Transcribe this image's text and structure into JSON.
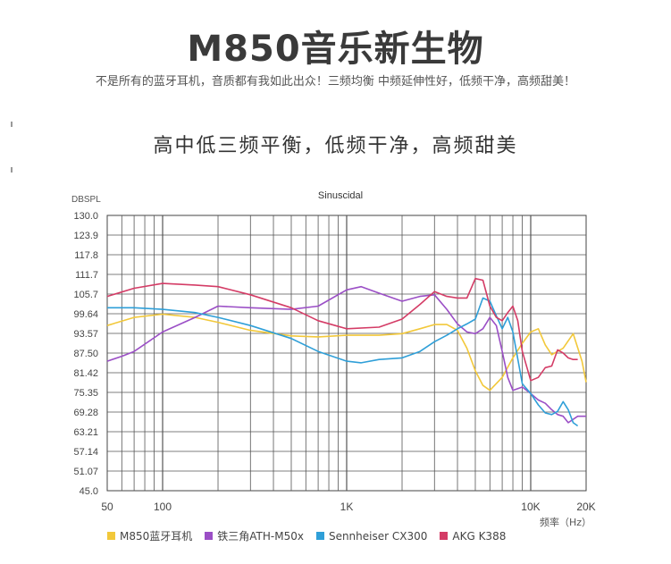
{
  "header": {
    "title": "M850音乐新生物",
    "tagline": "不是所有的蓝牙耳机，音质都有我如此出众！三频均衡 中频延伸性好，低频干净，高频甜美！",
    "subtitle": "高中低三频平衡，低频干净，高频甜美"
  },
  "chart_data": {
    "type": "line",
    "title": "Sinuscidal",
    "ylabel": "DBSPL",
    "xlabel": "频率（Hz）",
    "x_scale": "log",
    "xlim": [
      50,
      20000
    ],
    "ylim": [
      45.0,
      130.0
    ],
    "y_ticks": [
      "130.0",
      "123.9",
      "117.8",
      "111.7",
      "105.7",
      "99.64",
      "93.57",
      "87.50",
      "81.42",
      "75.35",
      "69.28",
      "63.21",
      "57.14",
      "51.07",
      "45.0"
    ],
    "x_ticks": [
      {
        "value": 50,
        "label": "50"
      },
      {
        "value": 100,
        "label": "100"
      },
      {
        "value": 1000,
        "label": "1K"
      },
      {
        "value": 10000,
        "label": "10K"
      },
      {
        "value": 20000,
        "label": "20K"
      }
    ],
    "grid": true,
    "legend_position": "bottom",
    "series": [
      {
        "name": "M850蓝牙耳机",
        "color": "#f2c83a",
        "x": [
          50,
          70,
          100,
          150,
          200,
          300,
          500,
          700,
          1000,
          1500,
          2000,
          2500,
          3000,
          3500,
          4000,
          4500,
          5000,
          5500,
          6000,
          7000,
          8000,
          9000,
          10000,
          11000,
          12000,
          13000,
          15000,
          17000,
          19000,
          20000
        ],
        "y": [
          96,
          98.5,
          99.5,
          98.5,
          97,
          94.5,
          92.8,
          92.5,
          93,
          93,
          93.5,
          95,
          96.3,
          96.3,
          94.5,
          89,
          82,
          77.5,
          76,
          80,
          86,
          90.5,
          94,
          95,
          90,
          87,
          89,
          93.5,
          85,
          78.5
        ]
      },
      {
        "name": "铁三角ATH-M50x",
        "color": "#9b4fc6",
        "x": [
          50,
          60,
          70,
          100,
          150,
          200,
          300,
          500,
          700,
          1000,
          1200,
          1500,
          2000,
          2500,
          3000,
          3500,
          4000,
          4500,
          5000,
          5500,
          6000,
          6500,
          7000,
          7500,
          8000,
          9000,
          10000,
          11000,
          12000,
          13000,
          14000,
          15000,
          16000,
          18000,
          20000
        ],
        "y": [
          85,
          86.5,
          88,
          94,
          98.5,
          102,
          101.5,
          101,
          102,
          107,
          108,
          106,
          103.5,
          105,
          105.5,
          101,
          96.5,
          94,
          93.5,
          95,
          98.5,
          96,
          88,
          80,
          76,
          77,
          75,
          73,
          72,
          70,
          68.5,
          68,
          66,
          68,
          68
        ]
      },
      {
        "name": "Sennheiser CX300",
        "color": "#2f9fd8",
        "x": [
          50,
          70,
          100,
          150,
          200,
          300,
          500,
          700,
          1000,
          1200,
          1500,
          2000,
          2500,
          3000,
          3500,
          4000,
          4500,
          5000,
          5500,
          6000,
          6500,
          7000,
          7500,
          8000,
          9000,
          10000,
          11000,
          12000,
          13000,
          14000,
          15000,
          16000,
          17000,
          18000
        ],
        "y": [
          101.5,
          101.5,
          101,
          100,
          98.5,
          96,
          92,
          88,
          85,
          84.5,
          85.5,
          86,
          88,
          91,
          93,
          95,
          96.5,
          98,
          104.5,
          103.5,
          99,
          95,
          98.5,
          94,
          78,
          75,
          71.5,
          69,
          68.5,
          69.5,
          72.5,
          70,
          66,
          65
        ]
      },
      {
        "name": "AKG K388",
        "color": "#d43c66",
        "x": [
          50,
          70,
          100,
          150,
          200,
          300,
          500,
          700,
          1000,
          1500,
          2000,
          2500,
          3000,
          3500,
          4000,
          4500,
          5000,
          5500,
          6000,
          6500,
          7000,
          7500,
          8000,
          8500,
          9000,
          10000,
          11000,
          12000,
          13000,
          14000,
          15000,
          16000,
          17000,
          18000
        ],
        "y": [
          105,
          107.5,
          109,
          108.5,
          108,
          105.5,
          101.5,
          97.5,
          95,
          95.5,
          98,
          102.5,
          106.5,
          105,
          104.5,
          104.5,
          110.5,
          110,
          102,
          98.5,
          97.5,
          100,
          102,
          97.5,
          88,
          79,
          80,
          83,
          83.5,
          88.5,
          87.5,
          86,
          85.5,
          85.5
        ]
      }
    ]
  }
}
